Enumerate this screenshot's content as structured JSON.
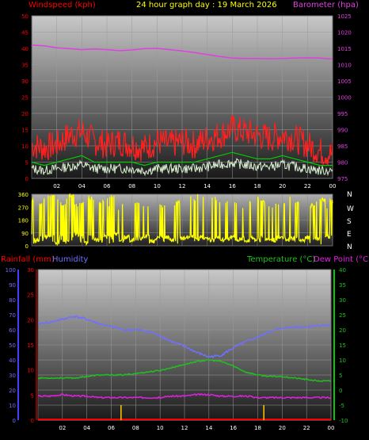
{
  "header": {
    "title": "24 hour graph day : 19 March 2026",
    "left_label": "Windspeed (kph)",
    "right_label": "Barometer (hpa)"
  },
  "wind_dir": {
    "compass": [
      "N",
      "W",
      "S",
      "E",
      "N"
    ]
  },
  "lower": {
    "left_label_1": "Rainfall (mm)",
    "left_label_2": "Humidity",
    "right_label_1": "Temperature (°C)",
    "right_label_2": "Dew Point (°C)"
  },
  "colors": {
    "windspeed": "#ff0000",
    "gust": "#ff2020",
    "avg_wind": "#00cc00",
    "wind_low": "#d8f0d0",
    "barometer": "#e040e0",
    "wind_dir": "#ffff00",
    "humidity": "#7070ff",
    "temperature": "#20c020",
    "dew_point": "#e020e0",
    "rainfall": "#ff0000",
    "rain_bar": "#ffcc00",
    "axis_humidity": "#4040ff",
    "axis_temp": "#00cc00"
  },
  "chart_data": [
    {
      "type": "line",
      "title": "24 hour graph day : 19 March 2026",
      "x_ticks": [
        "02",
        "04",
        "06",
        "08",
        "10",
        "12",
        "14",
        "16",
        "18",
        "20",
        "22",
        "00"
      ],
      "x_hours": [
        0,
        24
      ],
      "ylabel_left": "Windspeed (kph)",
      "ylabel_right": "Barometer (hpa)",
      "ylim_left": [
        0,
        50
      ],
      "ylim_right": [
        975,
        1025
      ],
      "y_ticks_left": [
        0,
        5,
        10,
        15,
        20,
        25,
        30,
        35,
        40,
        45,
        50
      ],
      "y_ticks_right": [
        975,
        980,
        985,
        990,
        995,
        1000,
        1005,
        1010,
        1015,
        1020,
        1025
      ],
      "series": [
        {
          "name": "Windspeed (kph)",
          "axis": "left",
          "style": "gust",
          "hours": [
            0,
            1,
            2,
            3,
            4,
            5,
            6,
            7,
            8,
            9,
            10,
            11,
            12,
            13,
            14,
            15,
            16,
            17,
            18,
            19,
            20,
            21,
            22,
            23,
            24
          ],
          "values": [
            9,
            8,
            9,
            12,
            13,
            10,
            9,
            10,
            9,
            8,
            10,
            9,
            10,
            9,
            11,
            12,
            14,
            13,
            12,
            11,
            12,
            11,
            9,
            7,
            6
          ]
        },
        {
          "name": "Average windspeed",
          "axis": "left",
          "style": "avg",
          "hours": [
            0,
            1,
            2,
            3,
            4,
            5,
            6,
            7,
            8,
            9,
            10,
            11,
            12,
            13,
            14,
            15,
            16,
            17,
            18,
            19,
            20,
            21,
            22,
            23,
            24
          ],
          "values": [
            5,
            4,
            5,
            6,
            7,
            5,
            5,
            5,
            5,
            4,
            5,
            5,
            5,
            5,
            6,
            7,
            8,
            7,
            6,
            6,
            7,
            6,
            5,
            4,
            4
          ]
        },
        {
          "name": "Barometer (hpa)",
          "axis": "right",
          "style": "line",
          "hours": [
            0,
            1,
            2,
            3,
            4,
            5,
            6,
            7,
            8,
            9,
            10,
            11,
            12,
            13,
            14,
            15,
            16,
            17,
            18,
            19,
            20,
            21,
            22,
            23,
            24
          ],
          "values": [
            1016.0,
            1015.8,
            1015.2,
            1014.9,
            1014.6,
            1014.8,
            1014.6,
            1014.3,
            1014.5,
            1014.9,
            1015.0,
            1014.6,
            1014.2,
            1013.7,
            1013.1,
            1012.5,
            1012.0,
            1011.9,
            1011.9,
            1011.8,
            1011.9,
            1012.0,
            1012.1,
            1012.0,
            1011.7
          ]
        }
      ]
    },
    {
      "type": "line",
      "title": "",
      "ylim": [
        0,
        360
      ],
      "y_ticks": [
        0,
        90,
        180,
        270,
        360
      ],
      "series": [
        {
          "name": "Wind direction",
          "style": "dir",
          "hours": [
            0,
            0.4,
            0.8,
            1.2,
            1.6,
            2,
            2.4,
            2.8,
            3.2,
            3.6,
            4,
            4.4,
            4.8,
            5.2,
            5.6,
            6,
            6.4,
            6.8,
            7.2,
            7.6,
            8,
            8.4,
            8.8,
            9.2,
            9.6,
            10,
            10.4,
            10.8,
            11.2,
            11.6,
            12,
            12.4,
            12.8,
            13.2,
            13.6,
            14,
            14.4,
            14.8,
            15.2,
            15.6,
            16,
            16.4,
            16.8,
            17.2,
            17.6,
            18,
            18.4,
            18.8,
            19.2,
            19.6,
            20,
            20.4,
            20.8,
            21.2,
            21.6,
            22,
            22.4,
            22.8,
            23.2,
            23.6,
            24
          ],
          "values": [
            320,
            40,
            300,
            60,
            340,
            20,
            290,
            30,
            350,
            80,
            300,
            20,
            330,
            40,
            310,
            60,
            340,
            80,
            30,
            60,
            40,
            300,
            50,
            70,
            30,
            50,
            280,
            60,
            40,
            300,
            50,
            60,
            70,
            40,
            60,
            50,
            40,
            60,
            40,
            50,
            60,
            40,
            50,
            30,
            60,
            40,
            310,
            50,
            40,
            300,
            60,
            40,
            50,
            300,
            40,
            60,
            280,
            50,
            320,
            60,
            310
          ]
        }
      ]
    },
    {
      "type": "line",
      "title": "",
      "ylabel_left_outer": "Rainfall (mm)",
      "ylabel_left_inner": "Humidity",
      "ylabel_right": "Temperature (°C) Dew Point (°C)",
      "ylim_humidity": [
        0,
        100
      ],
      "ylim_rainfall": [
        0,
        30
      ],
      "ylim_temperature": [
        -10,
        40
      ],
      "y_ticks_humidity": [
        0,
        10,
        20,
        30,
        40,
        50,
        60,
        70,
        80,
        90,
        100
      ],
      "y_ticks_rainfall": [
        0,
        5,
        10,
        15,
        20,
        25,
        30
      ],
      "y_ticks_temperature": [
        -10,
        -5,
        0,
        5,
        10,
        15,
        20,
        25,
        30,
        35,
        40
      ],
      "series": [
        {
          "name": "Humidity",
          "axis": "humidity",
          "hours": [
            0,
            1,
            2,
            3,
            4,
            5,
            6,
            7,
            8,
            9,
            10,
            11,
            12,
            13,
            14,
            15,
            16,
            17,
            18,
            19,
            20,
            21,
            22,
            23,
            24
          ],
          "values": [
            64,
            65,
            67,
            69,
            67,
            64,
            62,
            60,
            60,
            59,
            56,
            52,
            49,
            45,
            42,
            43,
            48,
            52,
            55,
            59,
            61,
            62,
            62,
            63,
            63
          ]
        },
        {
          "name": "Temperature (°C)",
          "axis": "temperature",
          "hours": [
            0,
            1,
            2,
            3,
            4,
            5,
            6,
            7,
            8,
            9,
            10,
            11,
            12,
            13,
            14,
            15,
            16,
            17,
            18,
            19,
            20,
            21,
            22,
            23,
            24
          ],
          "values": [
            4,
            4,
            4,
            4,
            4.5,
            5,
            5,
            5,
            5.5,
            6,
            6.5,
            7.5,
            8.5,
            9.5,
            10,
            9.5,
            8,
            6,
            5,
            4.5,
            4.5,
            4,
            3.5,
            3,
            3
          ]
        },
        {
          "name": "Dew Point (°C)",
          "axis": "temperature",
          "hours": [
            0,
            1,
            2,
            3,
            4,
            5,
            6,
            7,
            8,
            9,
            10,
            11,
            12,
            13,
            14,
            15,
            16,
            17,
            18,
            19,
            20,
            21,
            22,
            23,
            24
          ],
          "values": [
            -2,
            -2,
            -1.5,
            -2,
            -2,
            -2.5,
            -2.5,
            -2.5,
            -2.5,
            -2.5,
            -2.5,
            -2,
            -2,
            -1.5,
            -1.5,
            -2,
            -2,
            -2,
            -2.5,
            -2.5,
            -2.5,
            -2.5,
            -2.5,
            -2.5,
            -2.5
          ]
        },
        {
          "name": "Rainfall (mm)",
          "axis": "rainfall",
          "style": "line",
          "hours": [
            0,
            24
          ],
          "values": [
            0,
            0
          ]
        },
        {
          "name": "Rain rate",
          "axis": "rainfall",
          "style": "bar",
          "hours": [
            6.8,
            18.5
          ],
          "values": [
            3,
            3
          ]
        }
      ]
    }
  ]
}
